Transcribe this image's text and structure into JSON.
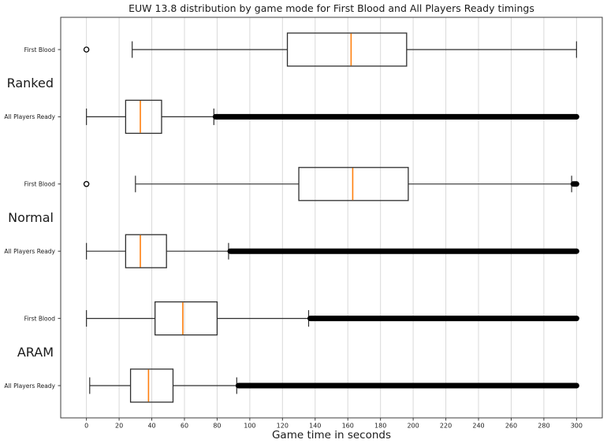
{
  "chart_data": {
    "type": "boxplot",
    "orientation": "horizontal",
    "title": "EUW 13.8 distribution by game mode for First Blood and All Players Ready timings",
    "xlabel": "Game time in seconds",
    "xlim": [
      -15.75,
      315.75
    ],
    "xticks": [
      0,
      20,
      40,
      60,
      80,
      100,
      120,
      140,
      160,
      180,
      200,
      220,
      240,
      260,
      280,
      300
    ],
    "grid": "vertical",
    "unit": "seconds",
    "groups": [
      {
        "label": "Ranked",
        "rows": [
          {
            "label": "First Blood",
            "outliers_low": [
              0
            ],
            "whisker_low": 28,
            "q1": 123,
            "median": 162,
            "q3": 196,
            "whisker_high": 300,
            "fliers_high": null
          },
          {
            "label": "All Players Ready",
            "outliers_low": [],
            "whisker_low": 0,
            "q1": 24,
            "median": 33,
            "q3": 46,
            "whisker_high": 78,
            "fliers_high": {
              "from": 79,
              "to": 300
            }
          }
        ]
      },
      {
        "label": "Normal",
        "rows": [
          {
            "label": "First Blood",
            "outliers_low": [
              0
            ],
            "whisker_low": 30,
            "q1": 130,
            "median": 163,
            "q3": 197,
            "whisker_high": 297,
            "fliers_high": {
              "from": 298,
              "to": 300
            }
          },
          {
            "label": "All Players Ready",
            "outliers_low": [],
            "whisker_low": 0,
            "q1": 24,
            "median": 33,
            "q3": 49,
            "whisker_high": 87,
            "fliers_high": {
              "from": 88,
              "to": 300
            }
          }
        ]
      },
      {
        "label": "ARAM",
        "rows": [
          {
            "label": "First Blood",
            "outliers_low": [],
            "whisker_low": 0,
            "q1": 42,
            "median": 59,
            "q3": 80,
            "whisker_high": 136,
            "fliers_high": {
              "from": 137,
              "to": 300
            }
          },
          {
            "label": "All Players Ready",
            "outliers_low": [],
            "whisker_low": 2,
            "q1": 27,
            "median": 38,
            "q3": 53,
            "whisker_high": 92,
            "fliers_high": {
              "from": 93,
              "to": 300
            }
          }
        ]
      }
    ],
    "colors": {
      "box": "#2f2f2f",
      "median": "#ff7f0e",
      "flier": "#000000",
      "grid": "#d9d9d9",
      "spine": "#3c3c3c",
      "text": "#1a1a1a"
    }
  }
}
